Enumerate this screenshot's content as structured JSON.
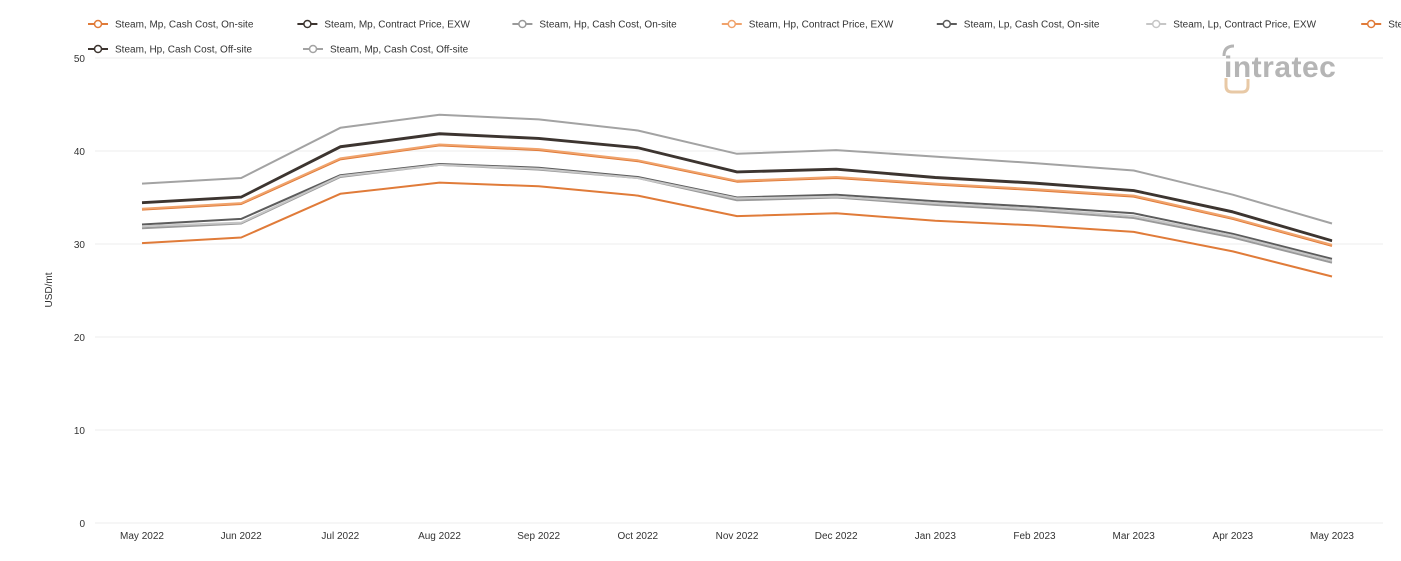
{
  "chart_data": {
    "type": "line",
    "title": "",
    "xlabel": "",
    "ylabel": "USD/mt",
    "ylim": [
      0,
      50
    ],
    "yticks": [
      0,
      10,
      20,
      30,
      40,
      50
    ],
    "grid": true,
    "legend_position": "top",
    "categories": [
      "May 2022",
      "Jun 2022",
      "Jul 2022",
      "Aug 2022",
      "Sep 2022",
      "Oct 2022",
      "Nov 2022",
      "Dec 2022",
      "Jan 2023",
      "Feb 2023",
      "Mar 2023",
      "Apr 2023",
      "May 2023"
    ],
    "series": [
      {
        "name": "Steam, Mp, Cash Cost, On-site",
        "color": "#e07b39",
        "values": [
          33.7,
          34.3,
          39.1,
          40.6,
          40.1,
          38.9,
          36.7,
          37.1,
          36.4,
          35.8,
          35.1,
          32.7,
          29.8
        ]
      },
      {
        "name": "Steam, Mp, Contract Price, EXW",
        "color": "#3d3530",
        "values": [
          34.5,
          35.1,
          40.5,
          41.9,
          41.4,
          40.4,
          37.8,
          38.1,
          37.2,
          36.6,
          35.8,
          33.5,
          30.4
        ]
      },
      {
        "name": "Steam, Hp, Cash Cost, On-site",
        "color": "#9a9a9a",
        "values": [
          31.7,
          32.2,
          37.2,
          38.5,
          38.0,
          37.1,
          34.7,
          35.0,
          34.2,
          33.6,
          32.8,
          30.7,
          28.0
        ]
      },
      {
        "name": "Steam, Hp, Contract Price, EXW",
        "color": "#f0a36c",
        "values": [
          33.8,
          34.4,
          39.2,
          40.7,
          40.2,
          39.0,
          36.8,
          37.2,
          36.5,
          35.9,
          35.2,
          32.8,
          29.9
        ]
      },
      {
        "name": "Steam, Lp, Cash Cost, On-site",
        "color": "#5c5c5c",
        "values": [
          32.1,
          32.7,
          37.4,
          38.6,
          38.2,
          37.2,
          35.0,
          35.3,
          34.6,
          34.0,
          33.3,
          31.1,
          28.4
        ]
      },
      {
        "name": "Steam, Lp, Contract Price, EXW",
        "color": "#c6c6c6",
        "values": [
          31.9,
          32.3,
          37.3,
          38.5,
          38.1,
          37.1,
          34.9,
          35.1,
          34.4,
          33.8,
          33.0,
          30.9,
          28.2
        ]
      },
      {
        "name": "Steam, Lp, Cash Cost, Off-site",
        "color": "#e07b39",
        "values": [
          30.1,
          30.7,
          35.4,
          36.6,
          36.2,
          35.2,
          33.0,
          33.3,
          32.5,
          32.0,
          31.3,
          29.2,
          26.5
        ]
      },
      {
        "name": "Steam, Hp, Cash Cost, Off-site",
        "color": "#3d3530",
        "values": [
          34.4,
          35.0,
          40.4,
          41.8,
          41.3,
          40.3,
          37.7,
          38.0,
          37.1,
          36.5,
          35.7,
          33.4,
          30.3
        ]
      },
      {
        "name": "Steam, Mp, Cash Cost, Off-site",
        "color": "#a3a3a3",
        "values": [
          36.5,
          37.1,
          42.5,
          43.9,
          43.4,
          42.2,
          39.7,
          40.1,
          39.4,
          38.7,
          37.9,
          35.3,
          32.2
        ]
      }
    ]
  },
  "logo": {
    "text": "intratec",
    "color": "#b5b5b5",
    "accent": "#e8c9a6"
  }
}
